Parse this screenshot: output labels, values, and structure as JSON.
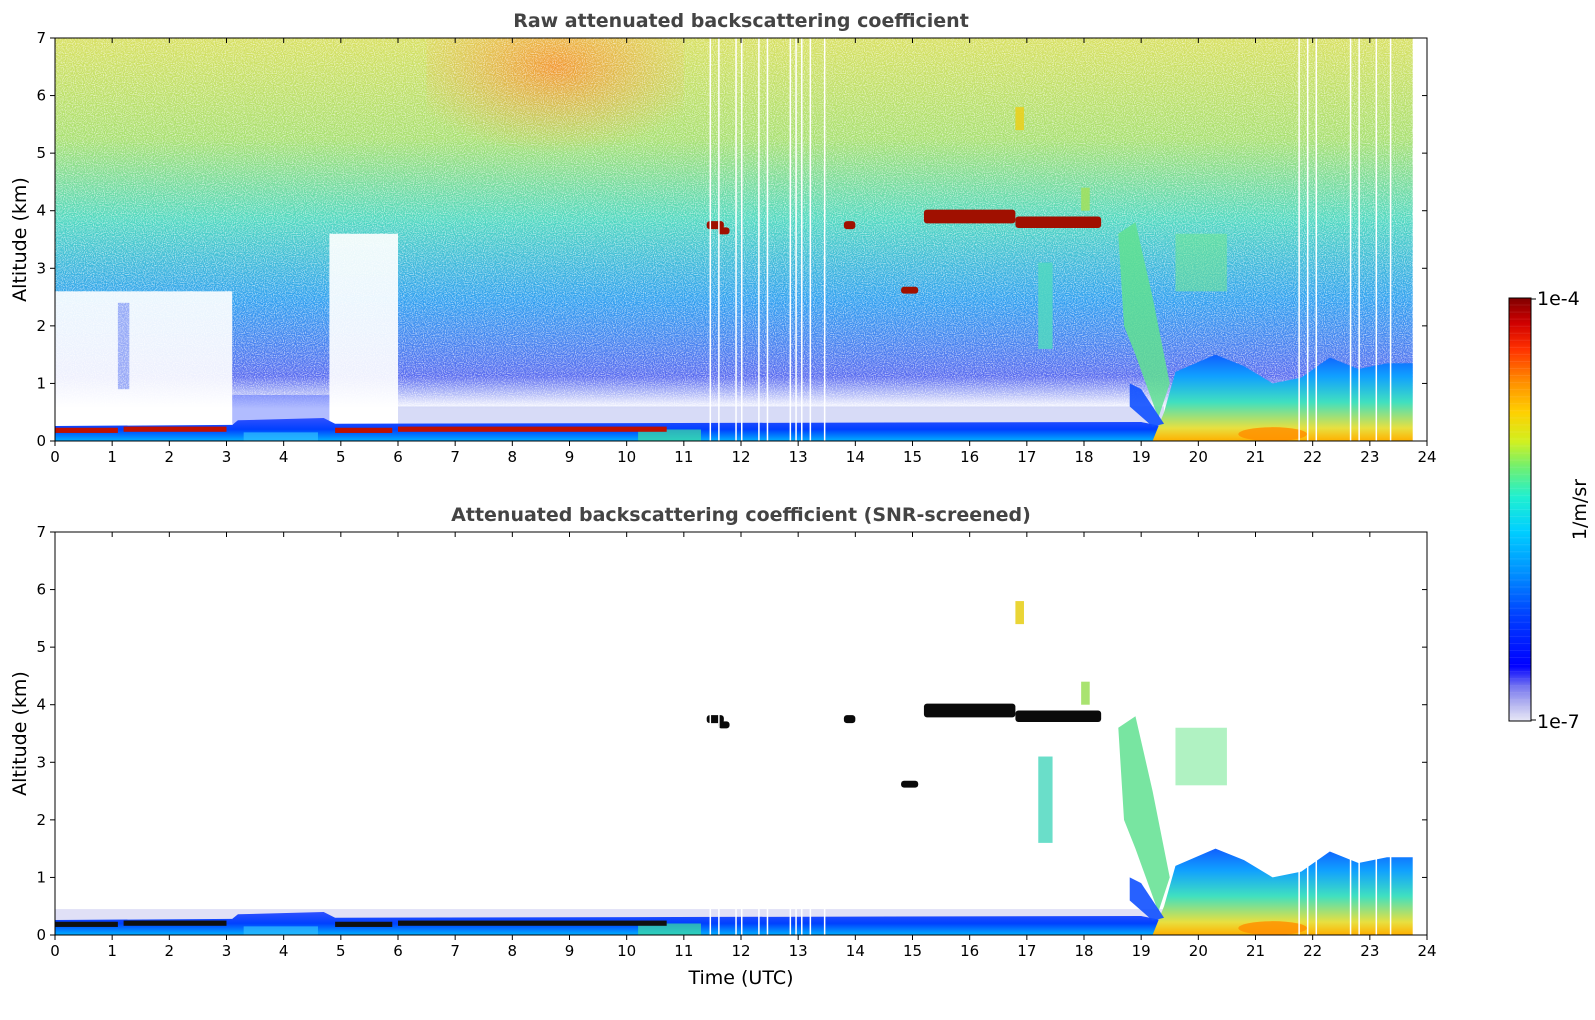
{
  "chart_data": [
    {
      "type": "heatmap",
      "title": "Raw attenuated backscattering coefficient",
      "xlabel": "",
      "ylabel": "Altitude (km)",
      "xlim": [
        0,
        24
      ],
      "ylim": [
        0,
        7
      ],
      "xticks": [
        "0",
        "1",
        "2",
        "3",
        "4",
        "5",
        "6",
        "7",
        "8",
        "9",
        "10",
        "11",
        "12",
        "13",
        "14",
        "15",
        "16",
        "17",
        "18",
        "19",
        "20",
        "21",
        "22",
        "23",
        "24"
      ],
      "yticks": [
        "0",
        "1",
        "2",
        "3",
        "4",
        "5",
        "6",
        "7"
      ],
      "data_end_time": 23.75,
      "color_scale": "log",
      "layers": [
        {
          "name": "surface aerosol layer",
          "t_start": 0,
          "t_end": 19.4,
          "alt_top_km": 0.3
        },
        {
          "name": "strong near-ground return",
          "t_start": 0,
          "t_end": 10.8,
          "alt_km": 0.15
        },
        {
          "name": "cloud layer",
          "t_start": 11.4,
          "t_end": 11.6,
          "alt_km": 3.7
        },
        {
          "name": "cloud layer",
          "t_start": 13.8,
          "t_end": 14.0,
          "alt_km": 3.75
        },
        {
          "name": "cloud layer",
          "t_start": 14.8,
          "t_end": 15.1,
          "alt_km": 2.6
        },
        {
          "name": "cloud layer",
          "t_start": 15.2,
          "t_end": 18.3,
          "alt_km": 3.9
        },
        {
          "name": "convective boundary layer",
          "t_start": 19.4,
          "t_end": 23.75,
          "alt_top_km": 1.3
        }
      ]
    },
    {
      "type": "heatmap",
      "title": "Attenuated backscattering coefficient (SNR-screened)",
      "xlabel": "Time (UTC)",
      "ylabel": "Altitude (km)",
      "xlim": [
        0,
        24
      ],
      "ylim": [
        0,
        7
      ],
      "xticks": [
        "0",
        "1",
        "2",
        "3",
        "4",
        "5",
        "6",
        "7",
        "8",
        "9",
        "10",
        "11",
        "12",
        "13",
        "14",
        "15",
        "16",
        "17",
        "18",
        "19",
        "20",
        "21",
        "22",
        "23",
        "24"
      ],
      "yticks": [
        "0",
        "1",
        "2",
        "3",
        "4",
        "5",
        "6",
        "7"
      ],
      "data_end_time": 23.75,
      "color_scale": "log"
    }
  ],
  "colorbar": {
    "label": "1/m/sr",
    "max_label": "1e-4",
    "min_label": "1e-7",
    "vmin": 1e-07,
    "vmax": 0.0001,
    "colors": [
      "#e8e8f6",
      "#b4b4f0",
      "#7878f0",
      "#0000ff",
      "#0040ff",
      "#0090ff",
      "#00d0ff",
      "#20f0d0",
      "#70f070",
      "#d0f020",
      "#ffd000",
      "#ff9000",
      "#ff3000",
      "#d00000",
      "#800000"
    ]
  }
}
